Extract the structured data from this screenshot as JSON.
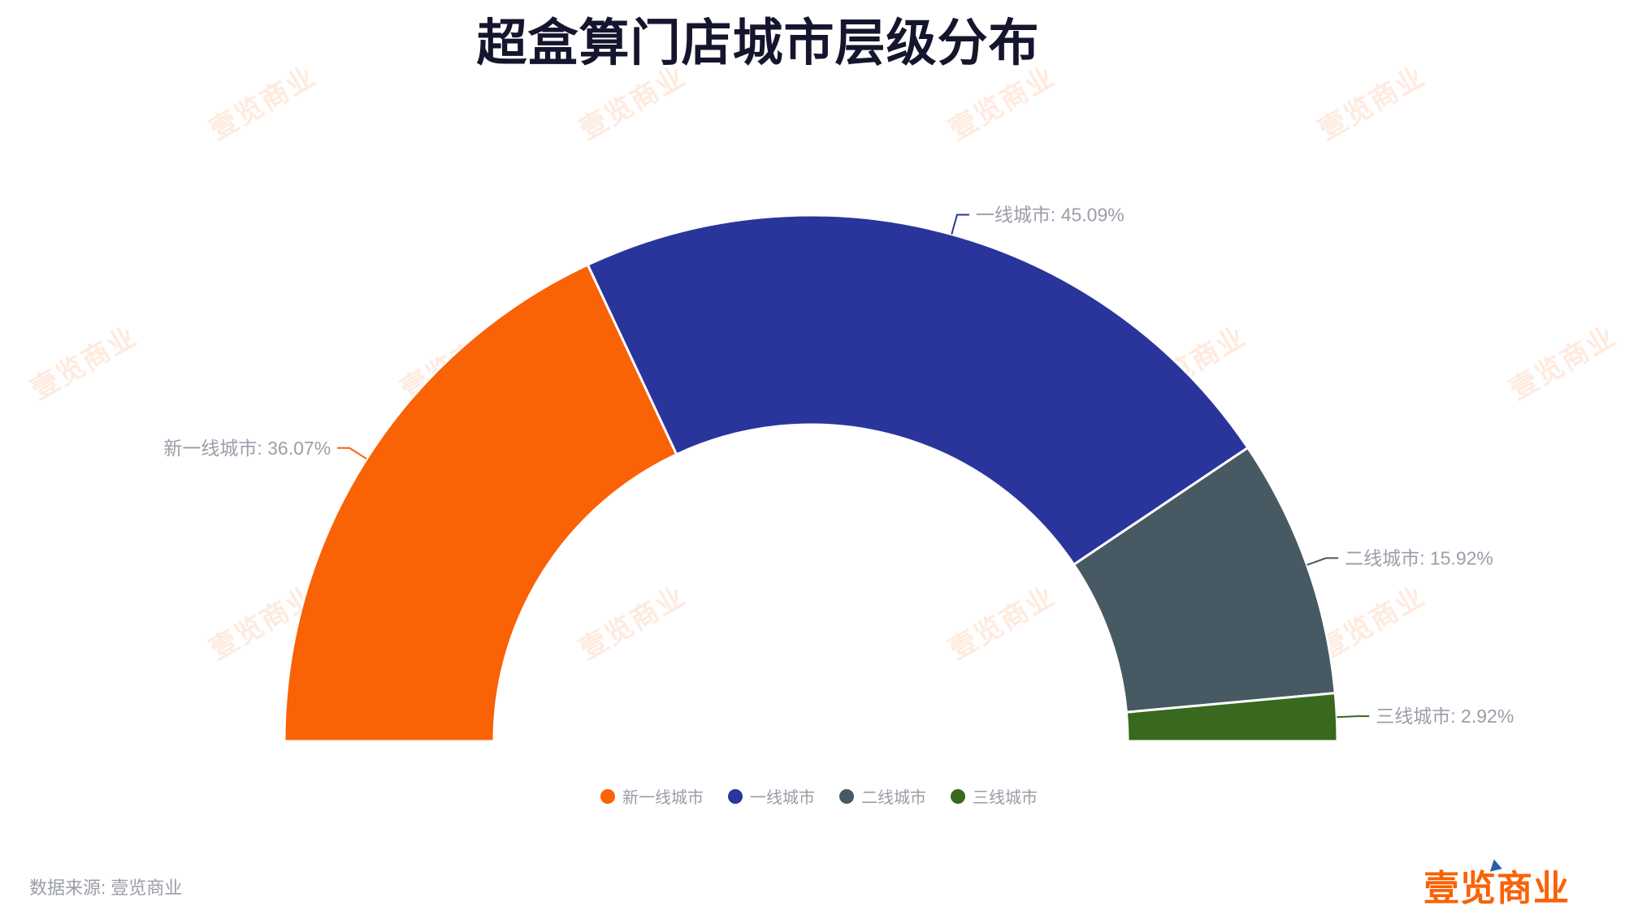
{
  "title": "超盒算门店城市层级分布",
  "source_note": "数据来源: 壹览商业",
  "watermark": {
    "text": "壹览商业"
  },
  "logo": {
    "text": "壹览商业",
    "color": "#f96206",
    "triangle_color": "#2c5fa8"
  },
  "chart_data": {
    "type": "pie",
    "subtype": "half-donut",
    "title": "超盒算门店城市层级分布",
    "categories": [
      "新一线城市",
      "一线城市",
      "二线城市",
      "三线城市"
    ],
    "values": [
      36.07,
      45.09,
      15.92,
      2.92
    ],
    "unit": "%",
    "colors": [
      "#f96205",
      "#2a359b",
      "#475a64",
      "#38691e"
    ],
    "label_texts": [
      "新一线城市: 36.07%",
      "一线城市: 45.09%",
      "二线城市: 15.92%",
      "三线城市: 2.92%"
    ],
    "label_color": "#9b9ea9",
    "start_angle": 180,
    "end_angle": 0,
    "inner_radius_ratio": 0.6,
    "legend_position": "bottom"
  },
  "legend": {
    "items": [
      {
        "label": "新一线城市",
        "color": "#f96205"
      },
      {
        "label": "一线城市",
        "color": "#2a359b"
      },
      {
        "label": "二线城市",
        "color": "#475a64"
      },
      {
        "label": "三线城市",
        "color": "#38691e"
      }
    ]
  }
}
